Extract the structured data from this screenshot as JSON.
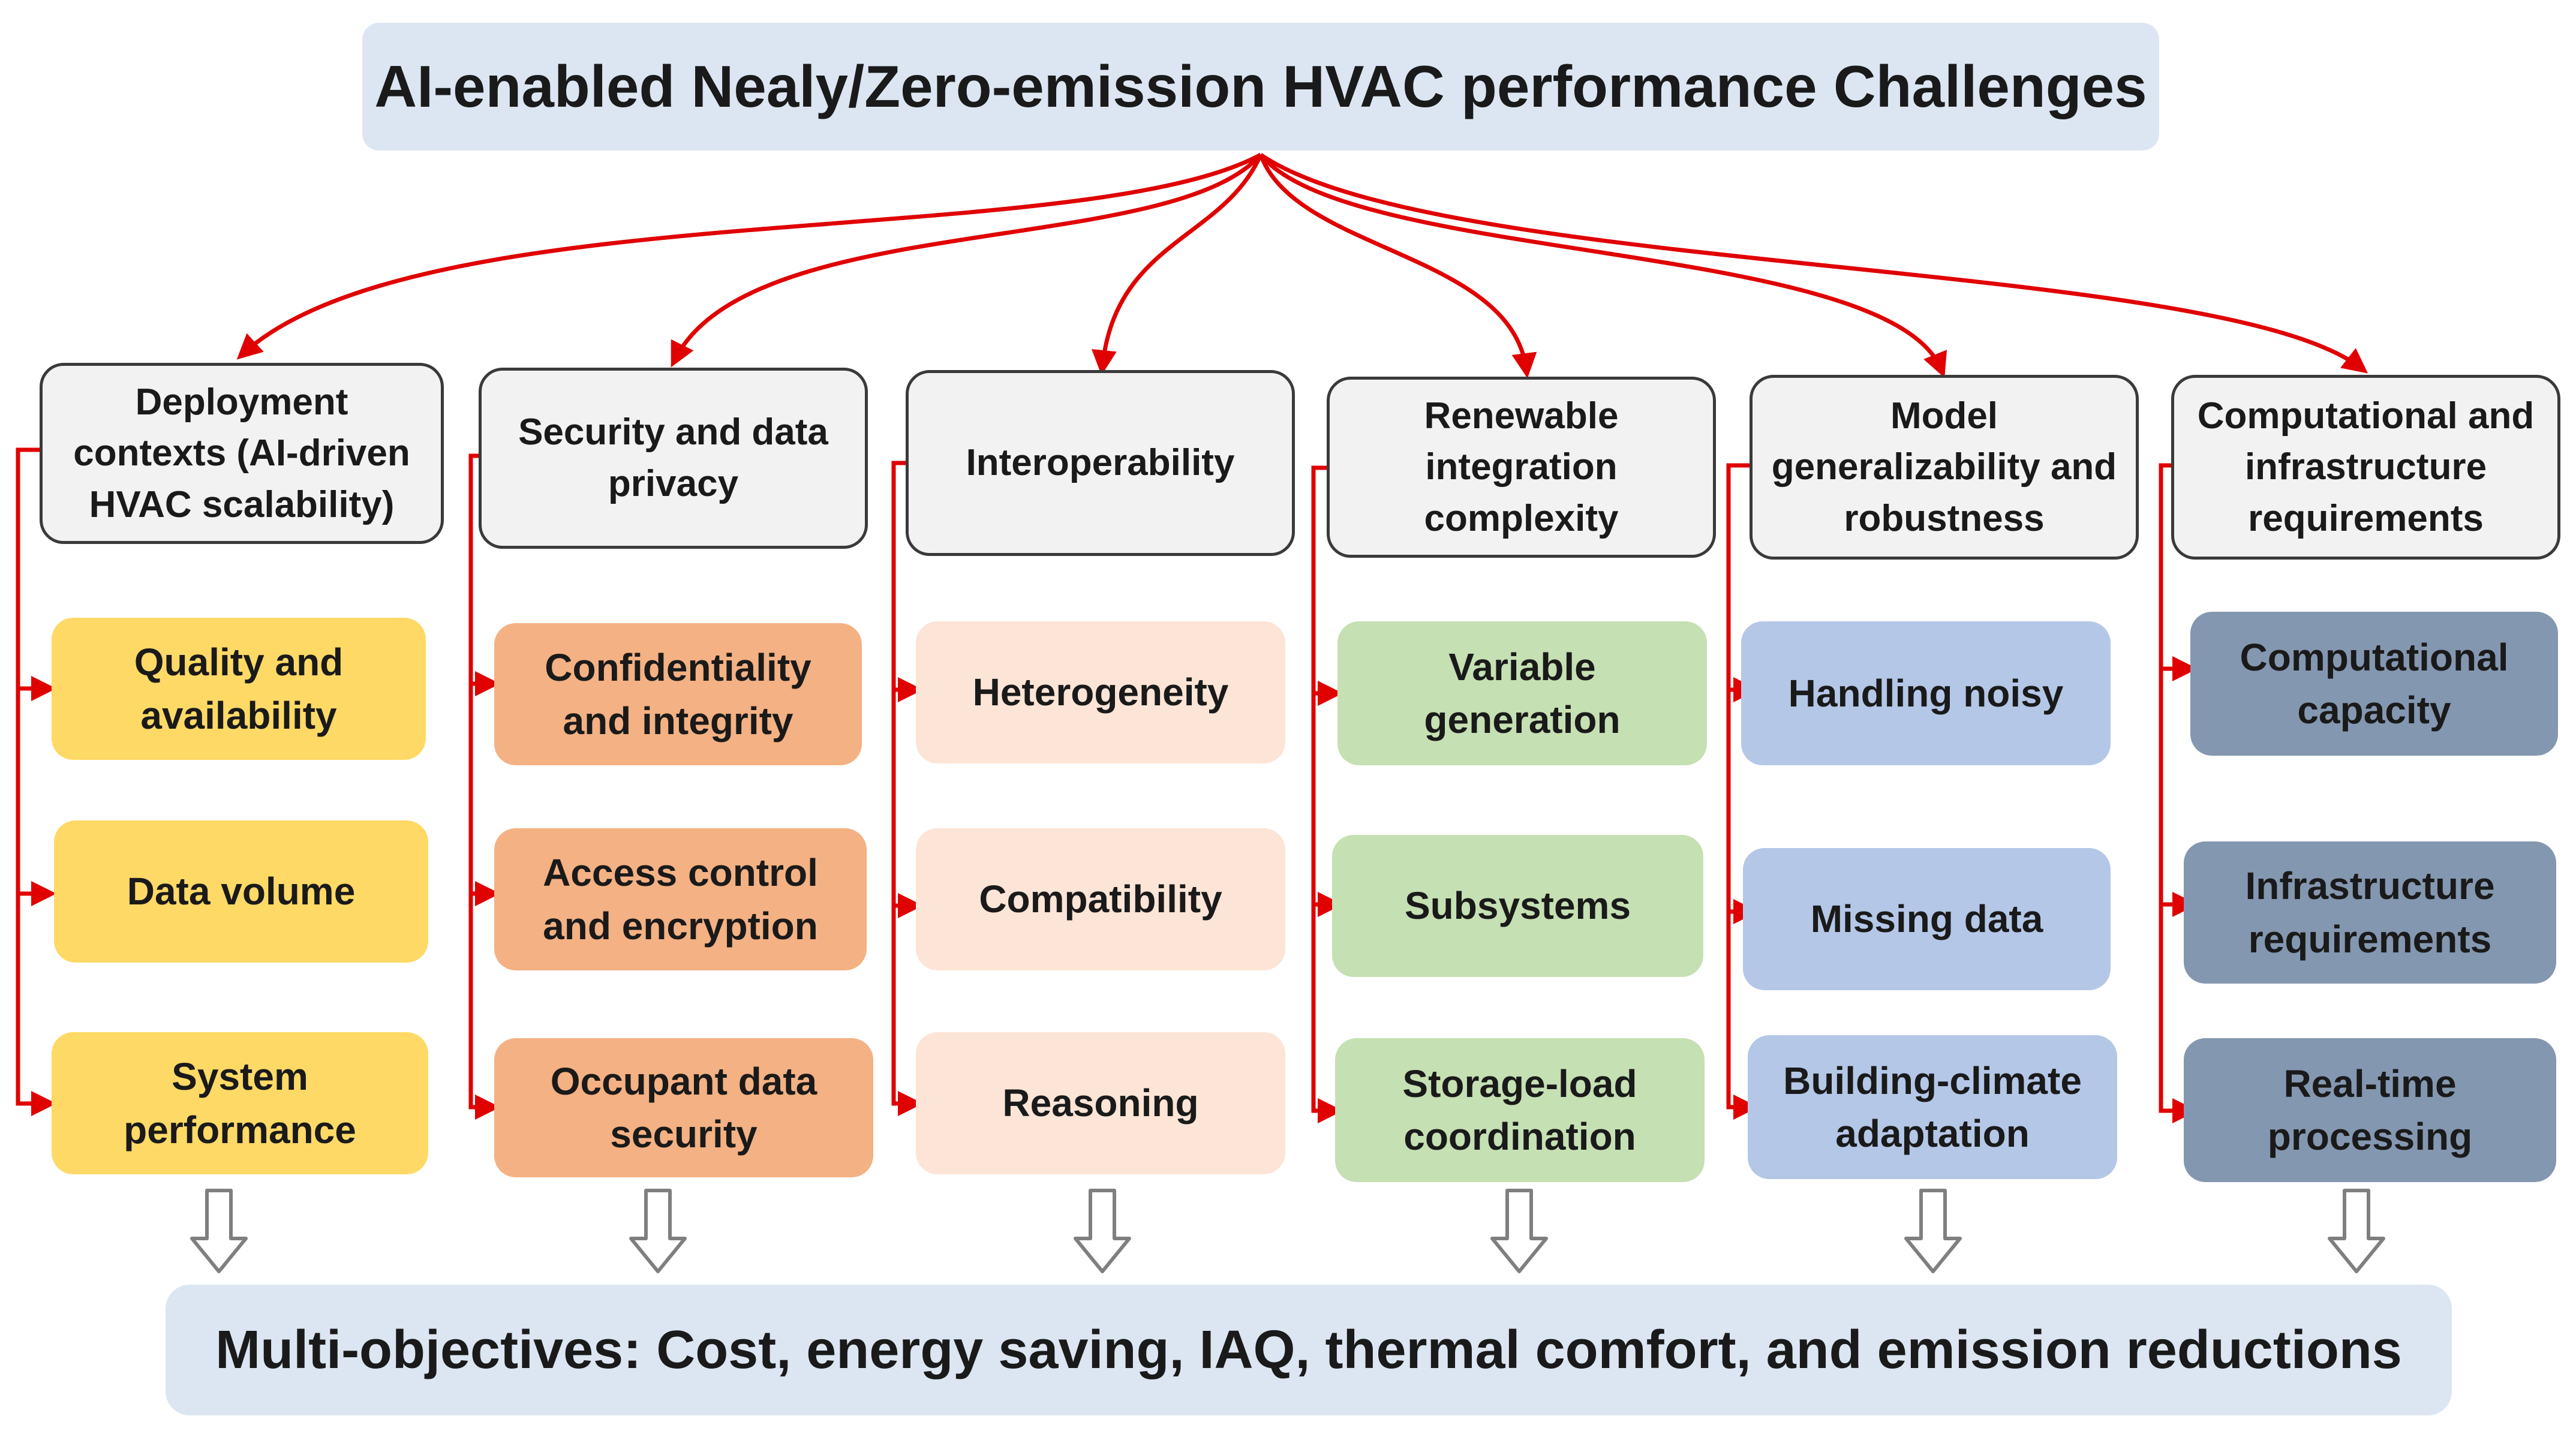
{
  "title": "AI-enabled Nealy/Zero-emission HVAC performance Challenges",
  "bottom": "Multi-objectives: Cost, energy saving, IAQ, thermal comfort, and emission reductions",
  "colors": {
    "connector": "#e00000",
    "header_border": "#3a3a3a",
    "down_arrow": "#7f7f7f"
  },
  "categories": [
    {
      "name": "Deployment contexts (AI-driven HVAC scalability)",
      "color": "#ffd966",
      "items": [
        "Quality and availability",
        "Data volume",
        "System performance"
      ]
    },
    {
      "name": "Security and data privacy",
      "color": "#f4b183",
      "items": [
        "Confidentiality and integrity",
        "Access control and encryption",
        "Occupant data security"
      ]
    },
    {
      "name": "Interoperability",
      "color": "#fce4d6",
      "items": [
        "Heterogeneity",
        "Compatibility",
        "Reasoning"
      ]
    },
    {
      "name": "Renewable integration complexity",
      "color": "#c5e0b3",
      "items": [
        "Variable generation",
        "Subsystems",
        "Storage-load coordination"
      ]
    },
    {
      "name": "Model generalizability and robustness",
      "color": "#b4c7e7",
      "items": [
        "Handling noisy",
        "Missing data",
        "Building-climate adaptation"
      ]
    },
    {
      "name": "Computational and infrastructure requirements",
      "color": "#8497b0",
      "items": [
        "Computational capacity",
        "Infrastructure requirements",
        "Real-time processing"
      ]
    }
  ]
}
